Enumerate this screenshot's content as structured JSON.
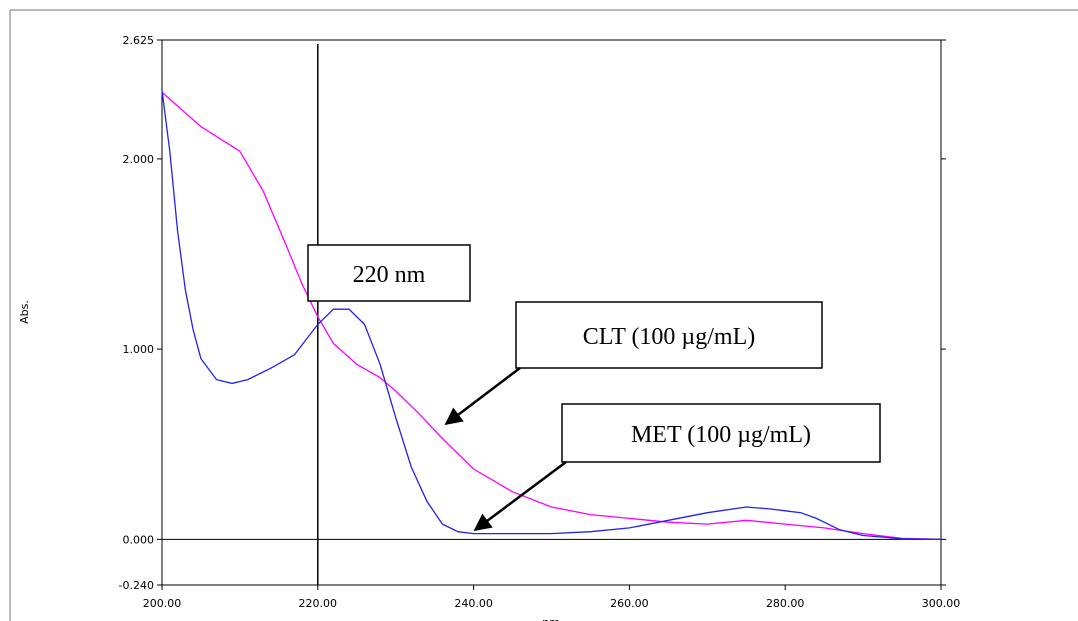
{
  "chart_data": {
    "type": "line",
    "xlabel": "nm",
    "ylabel": "Abs.",
    "xlim": [
      200,
      300
    ],
    "xticks": [
      {
        "value": 200,
        "label": "200.00"
      },
      {
        "value": 220,
        "label": "220.00"
      },
      {
        "value": 240,
        "label": "240.00"
      },
      {
        "value": 260,
        "label": "260.00"
      },
      {
        "value": 280,
        "label": "280.00"
      },
      {
        "value": 300,
        "label": "300.00"
      }
    ],
    "ylim": [
      -0.24,
      2.625
    ],
    "yticks": [
      {
        "value": -0.24,
        "label": "-0.240"
      },
      {
        "value": 0,
        "label": "0.000"
      },
      {
        "value": 1,
        "label": "1.000"
      },
      {
        "value": 2,
        "label": "2.000"
      },
      {
        "value": 2.625,
        "label": "2.625"
      }
    ],
    "marker_line_x": 220,
    "series": [
      {
        "name": "CLT",
        "color": "#ff00ff",
        "x": [
          200,
          205,
          210,
          213,
          216,
          218,
          220,
          222,
          225,
          228,
          230,
          233,
          236,
          240,
          245,
          250,
          255,
          260,
          265,
          270,
          275,
          280,
          285,
          290,
          295,
          300
        ],
        "values": [
          2.35,
          2.17,
          2.04,
          1.83,
          1.54,
          1.34,
          1.17,
          1.03,
          0.92,
          0.85,
          0.78,
          0.66,
          0.53,
          0.37,
          0.25,
          0.17,
          0.13,
          0.11,
          0.09,
          0.08,
          0.1,
          0.08,
          0.06,
          0.03,
          0.005,
          0
        ]
      },
      {
        "name": "MET",
        "color": "#2222ee",
        "x": [
          200,
          201,
          202,
          203,
          204,
          205,
          207,
          209,
          211,
          214,
          217,
          220,
          222,
          224,
          226,
          228,
          230,
          232,
          234,
          236,
          238,
          240,
          250,
          255,
          260,
          265,
          270,
          275,
          278,
          280,
          282,
          284,
          287,
          290,
          295,
          300
        ],
        "values": [
          2.36,
          2.04,
          1.62,
          1.31,
          1.1,
          0.95,
          0.84,
          0.82,
          0.84,
          0.9,
          0.97,
          1.13,
          1.21,
          1.21,
          1.13,
          0.92,
          0.64,
          0.38,
          0.2,
          0.08,
          0.04,
          0.03,
          0.03,
          0.04,
          0.06,
          0.1,
          0.14,
          0.17,
          0.16,
          0.15,
          0.14,
          0.11,
          0.05,
          0.02,
          0.003,
          0
        ]
      }
    ],
    "annotations": [
      "220 nm",
      "CLT (100 µg/mL)",
      "MET (100 µg/mL)"
    ]
  }
}
